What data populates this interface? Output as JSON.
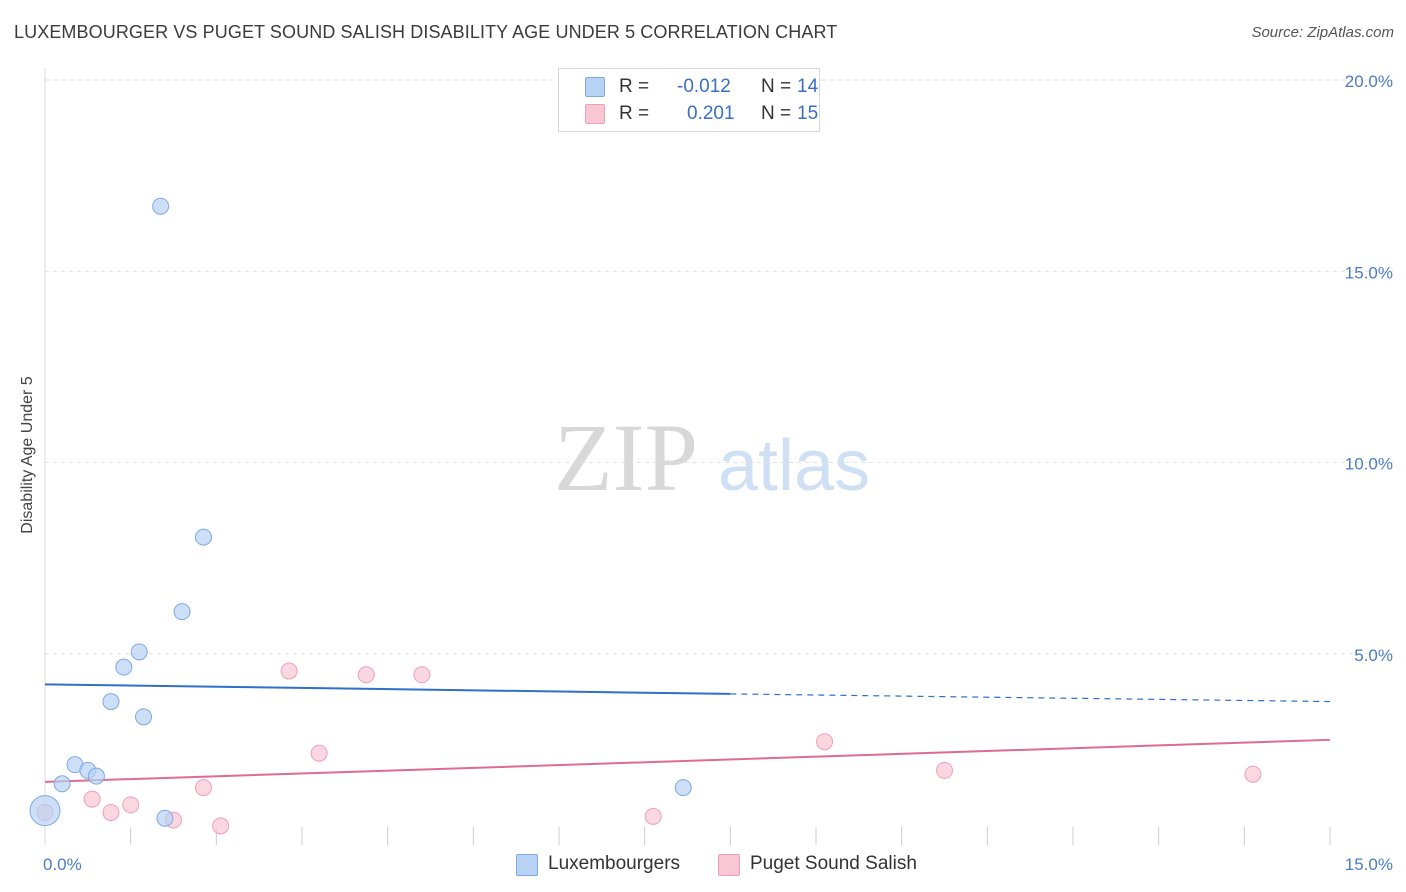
{
  "title": "LUXEMBOURGER VS PUGET SOUND SALISH DISABILITY AGE UNDER 5 CORRELATION CHART",
  "source": "Source: ZipAtlas.com",
  "watermark": {
    "zip": "ZIP",
    "atlas": "atlas"
  },
  "colors": {
    "blue_fill": "#b7d2f4",
    "blue_stroke": "#7fa9e2",
    "blue_line": "#2f6fc9",
    "pink_fill": "#f9c6d4",
    "pink_stroke": "#eda0b6",
    "pink_line": "#e06a92",
    "grid": "#e2e2e2",
    "tick_text": "#4a7cc7"
  },
  "stats": [
    {
      "r_label": "R =",
      "r_value": "-0.012",
      "n_label": "N =",
      "n_value": "14"
    },
    {
      "r_label": "R =",
      "r_value": "0.201",
      "n_label": "N =",
      "n_value": "15"
    }
  ],
  "legend": [
    "Luxembourgers",
    "Puget Sound Salish"
  ],
  "chart_data": {
    "type": "scatter",
    "xlabel": "",
    "ylabel": "Disability Age Under 5",
    "xlim": [
      0,
      15
    ],
    "ylim": [
      0,
      20
    ],
    "x_tick_labels": [
      {
        "value": 0,
        "label": "0.0%"
      },
      {
        "value": 15,
        "label": "15.0%"
      }
    ],
    "y_tick_labels": [
      {
        "value": 5,
        "label": "5.0%"
      },
      {
        "value": 10,
        "label": "10.0%"
      },
      {
        "value": 15,
        "label": "15.0%"
      },
      {
        "value": 20,
        "label": "20.0%"
      }
    ],
    "grid": "horizontal dashed",
    "legend_position": "bottom-center",
    "series": [
      {
        "name": "Luxembourgers",
        "points": [
          {
            "x": 0.0,
            "y": 0.9,
            "size": "large"
          },
          {
            "x": 0.2,
            "y": 1.6
          },
          {
            "x": 0.35,
            "y": 2.1
          },
          {
            "x": 0.5,
            "y": 1.95
          },
          {
            "x": 0.6,
            "y": 1.8
          },
          {
            "x": 0.77,
            "y": 3.75
          },
          {
            "x": 0.92,
            "y": 4.65
          },
          {
            "x": 1.1,
            "y": 5.05
          },
          {
            "x": 1.15,
            "y": 3.35
          },
          {
            "x": 1.35,
            "y": 16.7
          },
          {
            "x": 1.4,
            "y": 0.7
          },
          {
            "x": 1.6,
            "y": 6.1
          },
          {
            "x": 1.85,
            "y": 8.05
          },
          {
            "x": 7.45,
            "y": 1.5
          }
        ],
        "trend": {
          "x_start": 0.0,
          "y_start": 4.2,
          "x_solid_end": 8.0,
          "y_solid_end": 3.95,
          "x_end": 15.0,
          "y_end": 3.75
        }
      },
      {
        "name": "Puget Sound Salish",
        "points": [
          {
            "x": 0.0,
            "y": 0.85
          },
          {
            "x": 0.55,
            "y": 1.2
          },
          {
            "x": 0.77,
            "y": 0.85
          },
          {
            "x": 1.0,
            "y": 1.05
          },
          {
            "x": 1.5,
            "y": 0.65
          },
          {
            "x": 1.85,
            "y": 1.5
          },
          {
            "x": 2.05,
            "y": 0.5
          },
          {
            "x": 2.85,
            "y": 4.55
          },
          {
            "x": 3.2,
            "y": 2.4
          },
          {
            "x": 3.75,
            "y": 4.45
          },
          {
            "x": 4.4,
            "y": 4.45
          },
          {
            "x": 7.1,
            "y": 0.75
          },
          {
            "x": 9.1,
            "y": 2.7
          },
          {
            "x": 10.5,
            "y": 1.95
          },
          {
            "x": 14.1,
            "y": 1.85
          }
        ],
        "trend": {
          "x_start": 0.0,
          "y_start": 1.65,
          "x_end": 15.0,
          "y_end": 2.75
        }
      }
    ]
  }
}
